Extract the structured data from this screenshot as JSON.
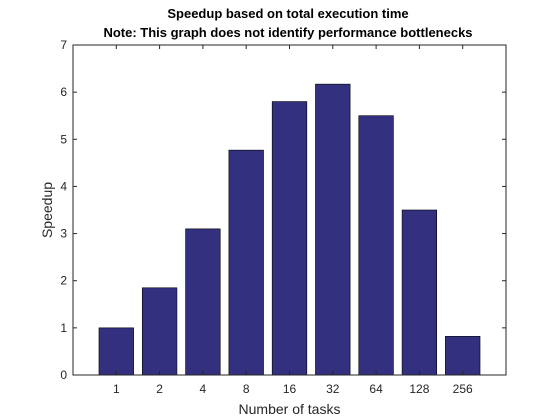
{
  "chart_data": {
    "type": "bar",
    "title": "Speedup based on total execution time",
    "subtitle": "Note: This graph does not identify performance bottlenecks",
    "xlabel": "Number of tasks",
    "ylabel": "Speedup",
    "categories": [
      "1",
      "2",
      "4",
      "8",
      "16",
      "32",
      "64",
      "128",
      "256"
    ],
    "values": [
      1.0,
      1.85,
      3.1,
      4.77,
      5.8,
      6.17,
      5.5,
      3.5,
      0.82
    ],
    "ylim": [
      0,
      7
    ],
    "yticks": [
      "0",
      "1",
      "2",
      "3",
      "4",
      "5",
      "6",
      "7"
    ],
    "grid": false,
    "legend": "none",
    "bar_color": "#33307f",
    "axes_color": "#262626"
  }
}
